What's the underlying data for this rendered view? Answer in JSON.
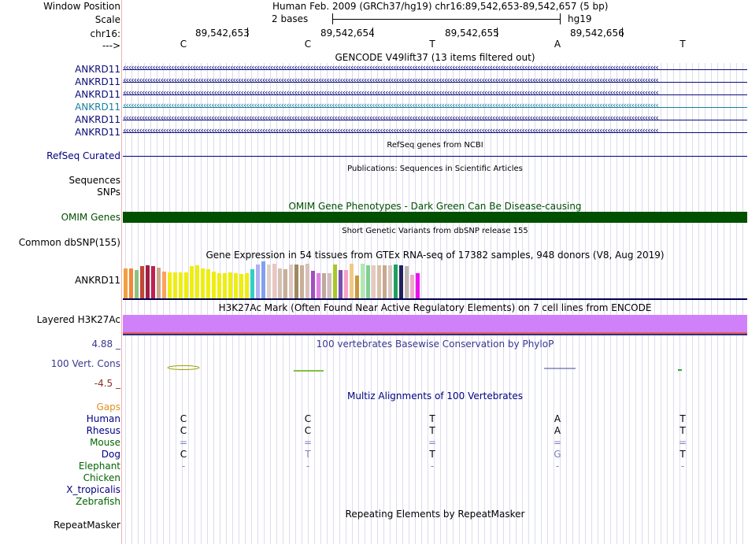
{
  "header": {
    "window_position_label": "Window Position",
    "window_position_value": "Human Feb. 2009 (GRCh37/hg19)   chr16:89,542,653-89,542,657 (5 bp)",
    "scale_label": "Scale",
    "scale_bases": "2 bases",
    "scale_assembly": "hg19",
    "chrom_label": "chr16:",
    "strand_label": "--->",
    "positions": [
      "89,542,653",
      "89,542,654",
      "89,542,655",
      "89,542,656"
    ],
    "bases": [
      "C",
      "C",
      "T",
      "A",
      "T"
    ]
  },
  "gencode": {
    "title": "GENCODE V49lift37 (13 items filtered out)",
    "genes": [
      "ANKRD11",
      "ANKRD11",
      "ANKRD11",
      "ANKRD11",
      "ANKRD11",
      "ANKRD11"
    ],
    "gene_colors": [
      "#0c0c78",
      "#0c0c78",
      "#0c0c78",
      "#1a7f9c",
      "#0c0c78",
      "#0c0c78"
    ]
  },
  "refseq": {
    "label": "RefSeq Curated",
    "title": "RefSeq genes from NCBI"
  },
  "publications": {
    "title": "Publications: Sequences in Scientific Articles",
    "label1": "Sequences",
    "label2": "SNPs"
  },
  "omim": {
    "label": "OMIM Genes",
    "title": "OMIM Gene Phenotypes - Dark Green Can Be Disease-causing",
    "color": "#005000"
  },
  "dbsnp": {
    "title": "Short Genetic Variants from dbSNP release 155",
    "label": "Common dbSNP(155)"
  },
  "gtex": {
    "title": "Gene Expression in 54 tissues from GTEx RNA-seq of 17382 samples, 948 donors (V8, Aug 2019)",
    "label": "ANKRD11",
    "bars": [
      {
        "c": "#f0a040",
        "v": 0.8
      },
      {
        "c": "#f08838",
        "v": 0.8
      },
      {
        "c": "#90c080",
        "v": 0.76
      },
      {
        "c": "#c04838",
        "v": 0.86
      },
      {
        "c": "#a02040",
        "v": 0.88
      },
      {
        "c": "#c02050",
        "v": 0.86
      },
      {
        "c": "#c8a888",
        "v": 0.82
      },
      {
        "c": "#ffa060",
        "v": 0.71
      },
      {
        "c": "#eeee10",
        "v": 0.68
      },
      {
        "c": "#eeee10",
        "v": 0.68
      },
      {
        "c": "#eeee10",
        "v": 0.68
      },
      {
        "c": "#eeee10",
        "v": 0.68
      },
      {
        "c": "#eeee10",
        "v": 0.86
      },
      {
        "c": "#eeee10",
        "v": 0.88
      },
      {
        "c": "#eeee10",
        "v": 0.8
      },
      {
        "c": "#eeee10",
        "v": 0.77
      },
      {
        "c": "#eeee10",
        "v": 0.71
      },
      {
        "c": "#eeee10",
        "v": 0.66
      },
      {
        "c": "#eeee10",
        "v": 0.66
      },
      {
        "c": "#eeee10",
        "v": 0.69
      },
      {
        "c": "#eeee10",
        "v": 0.66
      },
      {
        "c": "#eeee10",
        "v": 0.64
      },
      {
        "c": "#eeee10",
        "v": 0.66
      },
      {
        "c": "#30d0c8",
        "v": 0.77
      },
      {
        "c": "#b0b0f0",
        "v": 0.9
      },
      {
        "c": "#80a0f0",
        "v": 0.98
      },
      {
        "c": "#e0d0c8",
        "v": 0.9
      },
      {
        "c": "#e8c8c0",
        "v": 0.92
      },
      {
        "c": "#d8c0b0",
        "v": 0.8
      },
      {
        "c": "#c8b098",
        "v": 0.78
      },
      {
        "c": "#e0c8c0",
        "v": 0.9
      },
      {
        "c": "#a08860",
        "v": 0.9
      },
      {
        "c": "#c8b098",
        "v": 0.88
      },
      {
        "c": "#d8c0b8",
        "v": 0.92
      },
      {
        "c": "#a050c0",
        "v": 0.72
      },
      {
        "c": "#e080e0",
        "v": 0.66
      },
      {
        "c": "#c0a8a0",
        "v": 0.66
      },
      {
        "c": "#d0c0b8",
        "v": 0.66
      },
      {
        "c": "#a8c828",
        "v": 0.9
      },
      {
        "c": "#7850b0",
        "v": 0.76
      },
      {
        "c": "#f8a0c8",
        "v": 0.76
      },
      {
        "c": "#f0c888",
        "v": 0.92
      },
      {
        "c": "#c89840",
        "v": 0.6
      },
      {
        "c": "#b0e8b0",
        "v": 0.92
      },
      {
        "c": "#80d090",
        "v": 0.88
      },
      {
        "c": "#e8c8c0",
        "v": 0.88
      },
      {
        "c": "#d8c0a8",
        "v": 0.88
      },
      {
        "c": "#c8a890",
        "v": 0.88
      },
      {
        "c": "#d8c8c0",
        "v": 0.88
      },
      {
        "c": "#20a060",
        "v": 0.9
      },
      {
        "c": "#202060",
        "v": 0.88
      },
      {
        "c": "#c0b8b0",
        "v": 0.86
      },
      {
        "c": "#f0a8c8",
        "v": 0.62
      },
      {
        "c": "#ee10ee",
        "v": 0.66
      }
    ]
  },
  "h3k27ac": {
    "title": "H3K27Ac Mark (Often Found Near Active Regulatory Elements) on 7 cell lines from ENCODE",
    "label": "Layered H3K27Ac",
    "color": "#d080f8"
  },
  "conservation": {
    "top": "4.88 _",
    "label": "100 Vert. Cons",
    "bottom": "-4.5 _",
    "title": "100 vertebrates Basewise Conservation by PhyloP"
  },
  "multiz": {
    "title": "Multiz Alignments of 100 Vertebrates",
    "gaps_label": "Gaps",
    "species": [
      {
        "name": "Human",
        "color": "#000080",
        "bases": [
          "C",
          "C",
          "T",
          "A",
          "T"
        ]
      },
      {
        "name": "Rhesus",
        "color": "#000080",
        "bases": [
          "C",
          "C",
          "T",
          "A",
          "T"
        ]
      },
      {
        "name": "Mouse",
        "color": "#006400",
        "bases": [
          "=",
          "=",
          "=",
          "=",
          "="
        ]
      },
      {
        "name": "Dog",
        "color": "#000080",
        "bases": [
          "C",
          "T",
          "T",
          "G",
          "T"
        ]
      },
      {
        "name": "Elephant",
        "color": "#006400",
        "bases": [
          "-",
          "-",
          "-",
          "-",
          "-"
        ]
      },
      {
        "name": "Chicken",
        "color": "#006400",
        "bases": [
          "",
          "",
          "",
          "",
          ""
        ]
      },
      {
        "name": "X_tropicalis",
        "color": "#000080",
        "bases": [
          "",
          "",
          "",
          "",
          ""
        ]
      },
      {
        "name": "Zebrafish",
        "color": "#006400",
        "bases": [
          "",
          "",
          "",
          "",
          ""
        ]
      }
    ]
  },
  "repeatmasker": {
    "title": "Repeating Elements by RepeatMasker",
    "label": "RepeatMasker"
  }
}
